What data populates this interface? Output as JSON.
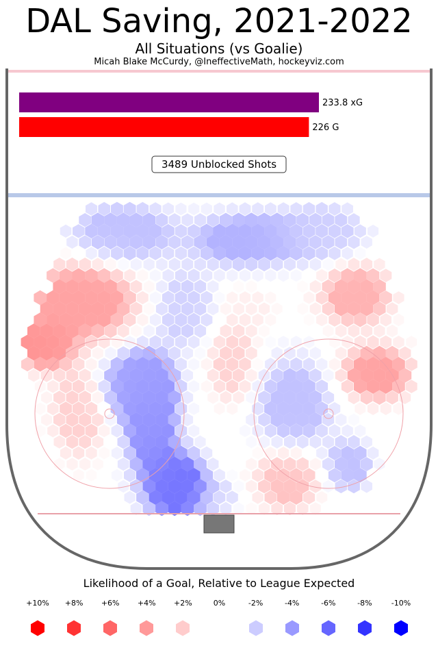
{
  "title": "DAL Saving, 2021-2022",
  "subtitle": "All Situations (vs Goalie)",
  "byline": "Micah Blake McCurdy, @IneffectiveMath, hockeyviz.com",
  "colors": {
    "xg_bar": "#800080",
    "goal_bar": "#ff0000",
    "board": "#666666",
    "goal_line": "#e8a0a8",
    "blue_line": "#b8c8e8",
    "net": "#777777"
  },
  "chart_data": {
    "type": "heatmap",
    "bars": [
      {
        "label": "233.8 xG",
        "value": 233.8
      },
      {
        "label": "226 G",
        "value": 226
      }
    ],
    "shots_label": "3489 Unblocked Shots",
    "shots": 3489,
    "legend": {
      "title": "Likelihood of a Goal, Relative to League Expected",
      "items": [
        {
          "label": "+10%",
          "value": 10,
          "color": "#ff0000"
        },
        {
          "label": "+8%",
          "value": 8,
          "color": "#ff3333"
        },
        {
          "label": "+6%",
          "value": 6,
          "color": "#ff6666"
        },
        {
          "label": "+4%",
          "value": 4,
          "color": "#ff9999"
        },
        {
          "label": "+2%",
          "value": 2,
          "color": "#ffcccc"
        },
        {
          "label": "0%",
          "value": 0,
          "color": "#ffffff"
        },
        {
          "label": "-2%",
          "value": -2,
          "color": "#ccccff"
        },
        {
          "label": "-4%",
          "value": -4,
          "color": "#9999ff"
        },
        {
          "label": "-6%",
          "value": -6,
          "color": "#6666ff"
        },
        {
          "label": "-8%",
          "value": -8,
          "color": "#3333ff"
        },
        {
          "label": "-10%",
          "value": -10,
          "color": "#0000ff"
        }
      ]
    },
    "zones": [
      {
        "area": "high slot / in front of crease",
        "value": -9
      },
      {
        "area": "low slot left of net",
        "value": -7
      },
      {
        "area": "left faceoff circle interior",
        "value": -6
      },
      {
        "area": "left point",
        "value": -4
      },
      {
        "area": "center point",
        "value": -5
      },
      {
        "area": "right point",
        "value": -3
      },
      {
        "area": "right faceoff circle interior",
        "value": -4
      },
      {
        "area": "right low slot",
        "value": 4
      },
      {
        "area": "left boards high",
        "value": 6
      },
      {
        "area": "left boards near circle",
        "value": 7
      },
      {
        "area": "right boards at circle",
        "value": 6
      },
      {
        "area": "right boards high",
        "value": 5
      }
    ]
  }
}
